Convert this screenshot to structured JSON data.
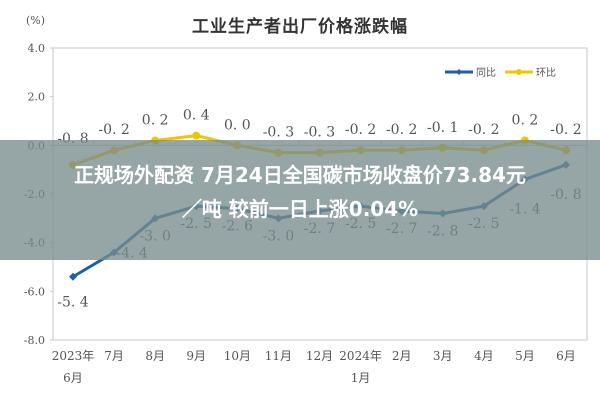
{
  "headline": {
    "line1": "正规场外配资 7月24日全国碳市场收盘价73.84元",
    "line2": "／吨 较前一日上涨0.04%"
  },
  "colors": {
    "yoy": "#1f5fa8",
    "mom": "#f2c400",
    "axis": "#c8c8c8",
    "label": "#555555",
    "overlay": "rgba(120,140,140,0.78)"
  },
  "chart_data": {
    "type": "line",
    "title": "工业生产者出厂价格涨跌幅",
    "ylabel": "(%)",
    "xlabel": "",
    "ylim": [
      -8.0,
      4.0
    ],
    "yticks": [
      "4.0",
      "2.0",
      "0.0",
      "-2.0",
      "-4.0",
      "-6.0",
      "-8.0"
    ],
    "categories": [
      "2023年\n6月",
      "7月",
      "8月",
      "9月",
      "10月",
      "11月",
      "12月",
      "2024年\n1月",
      "2月",
      "3月",
      "4月",
      "5月",
      "6月"
    ],
    "series": [
      {
        "name": "同比",
        "color": "#1f5fa8",
        "marker": "diamond",
        "values": [
          -5.4,
          -4.4,
          -3.0,
          -2.5,
          -2.6,
          -3.0,
          -2.7,
          -2.5,
          -2.7,
          -2.8,
          -2.5,
          -1.4,
          -0.8
        ]
      },
      {
        "name": "环比",
        "color": "#f2c400",
        "marker": "circle",
        "values": [
          -0.8,
          -0.2,
          0.2,
          0.4,
          0.0,
          -0.3,
          -0.3,
          -0.2,
          -0.2,
          -0.1,
          -0.2,
          0.2,
          -0.2
        ]
      }
    ],
    "legend": {
      "position": "top-right",
      "entries": [
        "同比",
        "环比"
      ]
    },
    "grid": false
  }
}
